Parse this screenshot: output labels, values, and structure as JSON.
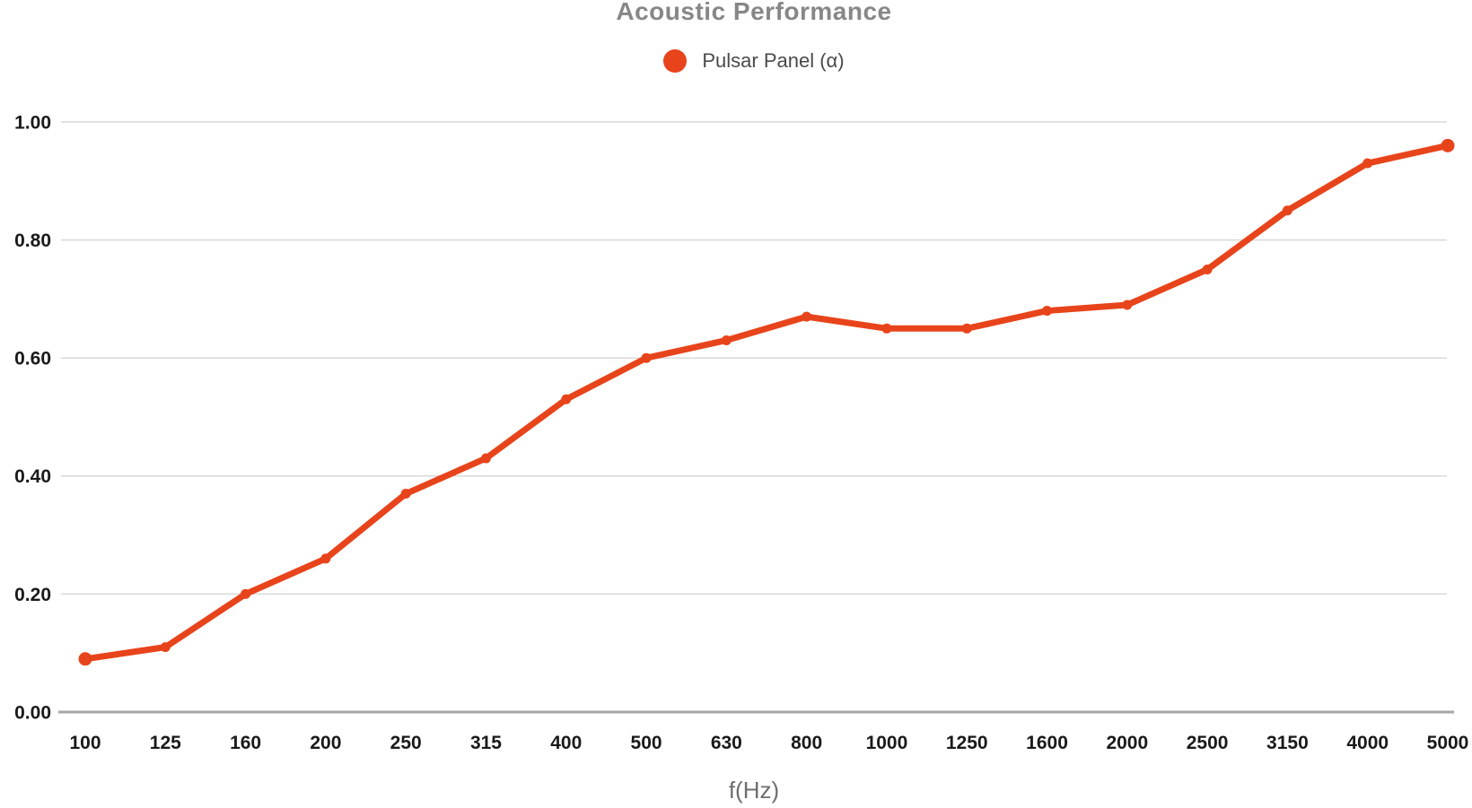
{
  "chart_data": {
    "type": "line",
    "title": "Acoustic Performance",
    "xlabel": "f(Hz)",
    "ylabel": "",
    "categories": [
      "100",
      "125",
      "160",
      "200",
      "250",
      "315",
      "400",
      "500",
      "630",
      "800",
      "1000",
      "1250",
      "1600",
      "2000",
      "2500",
      "3150",
      "4000",
      "5000"
    ],
    "series": [
      {
        "name": "Pulsar Panel (α)",
        "values": [
          0.09,
          0.11,
          0.2,
          0.26,
          0.37,
          0.43,
          0.53,
          0.6,
          0.63,
          0.67,
          0.65,
          0.65,
          0.68,
          0.69,
          0.75,
          0.85,
          0.93,
          0.96
        ],
        "color": "#e8441b",
        "marker": "circle"
      }
    ],
    "ylim": [
      0.0,
      1.0
    ],
    "y_ticks": [
      0.0,
      0.2,
      0.4,
      0.6,
      0.8,
      1.0
    ],
    "y_tick_labels": [
      "0.00",
      "0.20",
      "0.40",
      "0.60",
      "0.80",
      "1.00"
    ],
    "grid": "horizontal",
    "legend_position": "top",
    "colors": {
      "series": "#e8441b",
      "title": "#878787",
      "legend_text": "#4a4a4a",
      "tick_label": "#1a1a1a",
      "axis_title": "#6e6e6e",
      "gridline": "#d9d9d9",
      "axis_line": "#a6a6a6",
      "background": "#ffffff"
    }
  }
}
